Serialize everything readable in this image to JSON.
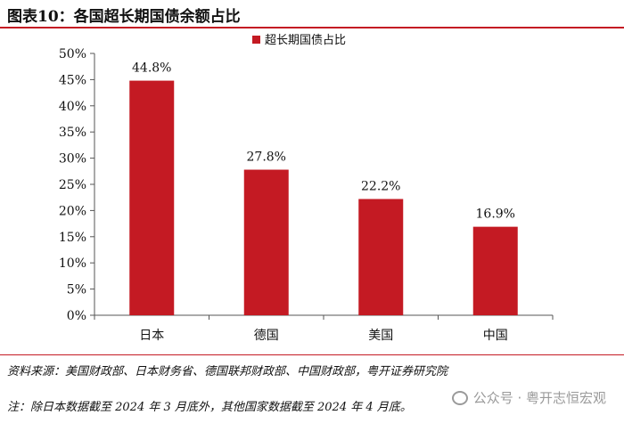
{
  "figure": {
    "title": "图表10：各国超长期国债余额占比"
  },
  "chart_data": {
    "type": "bar",
    "categories": [
      "日本",
      "德国",
      "美国",
      "中国"
    ],
    "series": [
      {
        "name": "超长期国债占比",
        "values": [
          44.8,
          27.8,
          22.2,
          16.9
        ],
        "color": "#c41a23"
      }
    ],
    "data_labels": [
      "44.8%",
      "27.8%",
      "22.2%",
      "16.9%"
    ],
    "ylim": [
      0,
      50
    ],
    "yticks": [
      "0%",
      "5%",
      "10%",
      "15%",
      "20%",
      "25%",
      "30%",
      "35%",
      "40%",
      "45%",
      "50%"
    ],
    "ytick_values": [
      0,
      5,
      10,
      15,
      20,
      25,
      30,
      35,
      40,
      45,
      50
    ],
    "legend_position": "top-center",
    "grid": false
  },
  "footer": {
    "source": "资料来源：美国财政部、日本财务省、德国联邦财政部、中国财政部，粤开证券研究院",
    "note": "注：除日本数据截至 2024 年 3 月底外，其他国家数据截至 2024 年 4 月底。"
  },
  "watermark": {
    "text": "公众号 · 粤开志恒宏观",
    "icon": "wechat-icon"
  }
}
